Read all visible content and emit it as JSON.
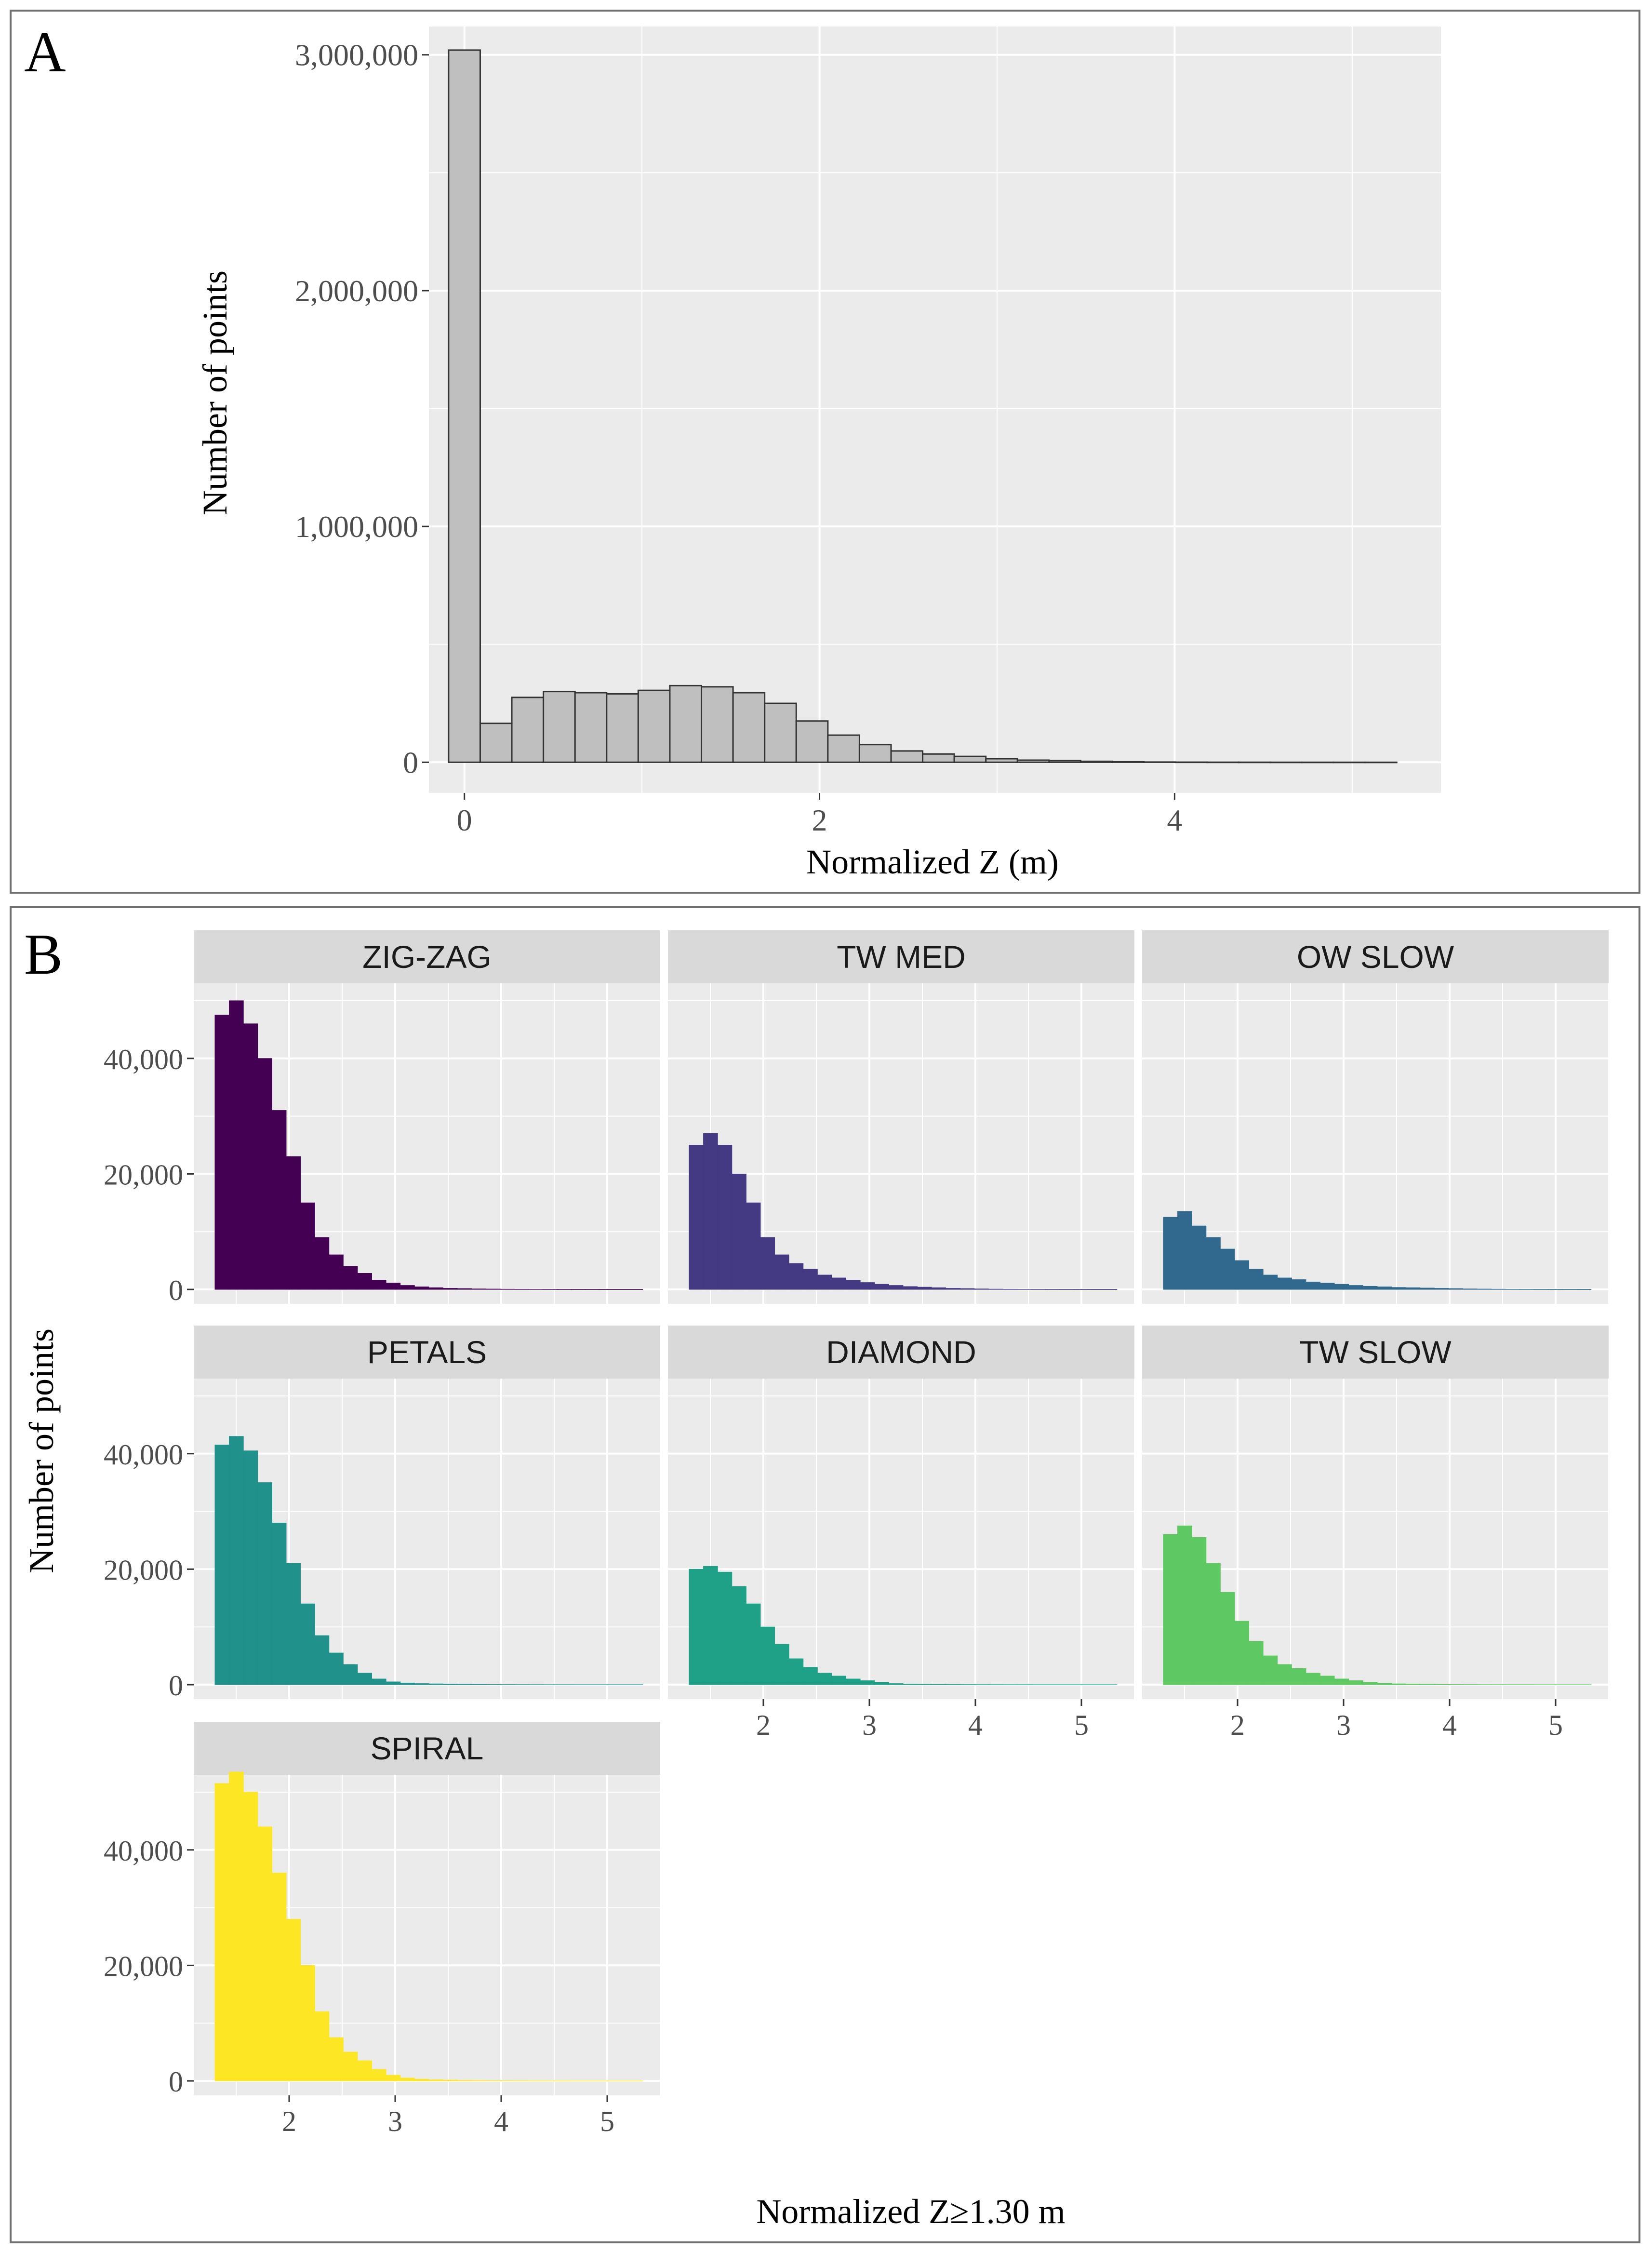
{
  "panel_a": {
    "letter": "A",
    "xlabel": "Normalized Z (m)",
    "ylabel": "Number of points"
  },
  "panel_b": {
    "letter": "B",
    "xlabel": "Normalized Z≥1.30 m",
    "ylabel": "Number of points"
  },
  "chart_data": [
    {
      "panel": "A",
      "type": "bar",
      "subtype": "histogram",
      "xlabel": "Normalized Z (m)",
      "ylabel": "Number of points",
      "xlim": [
        -0.2,
        5.5
      ],
      "ylim": [
        -130000,
        3120000
      ],
      "x_ticks": [
        0,
        2,
        4
      ],
      "x_tick_labels": [
        "0",
        "2",
        "4"
      ],
      "y_ticks": [
        0,
        1000000,
        2000000,
        3000000
      ],
      "y_tick_labels": [
        "0",
        "1,000,000",
        "2,000,000",
        "3,000,000"
      ],
      "bin_width": 0.178,
      "bin_start": -0.089,
      "values": [
        3020000,
        165000,
        275000,
        300000,
        295000,
        290000,
        305000,
        325000,
        320000,
        295000,
        250000,
        175000,
        115000,
        75000,
        48000,
        35000,
        25000,
        15000,
        9000,
        7000,
        4000,
        2000,
        1000,
        500,
        300,
        200,
        100,
        60,
        40,
        20
      ],
      "fill": "#bfbfbf",
      "outline": "#333333",
      "grid": true,
      "panel_background": "#ebebeb"
    },
    {
      "panel": "B",
      "type": "bar",
      "subtype": "faceted histogram",
      "xlabel": "Normalized Z≥1.30 m",
      "ylabel": "Number of points",
      "xlim": [
        1.1,
        5.5
      ],
      "ylim": [
        -2500,
        53000
      ],
      "x_ticks": [
        2,
        3,
        4,
        5
      ],
      "x_tick_labels": [
        "2",
        "3",
        "4",
        "5"
      ],
      "y_ticks": [
        0,
        20000,
        40000
      ],
      "y_tick_labels": [
        "0",
        "20,000",
        "40,000"
      ],
      "bin_width": 0.1345,
      "bin_start": 1.3,
      "grid": true,
      "panel_background": "#ebebeb",
      "strip_background": "#d9d9d9",
      "facets": [
        {
          "name": "ZIG-ZAG",
          "color": "#440154",
          "values": [
            47500,
            50000,
            46000,
            40000,
            31000,
            23000,
            15000,
            9000,
            6000,
            4000,
            2800,
            1600,
            1100,
            700,
            450,
            300,
            200,
            150,
            100,
            80,
            60,
            50,
            40,
            30,
            20,
            10,
            10,
            5,
            5,
            5
          ]
        },
        {
          "name": "TW MED",
          "color": "#443983",
          "values": [
            25000,
            27000,
            25000,
            20000,
            15000,
            9000,
            6000,
            4500,
            3500,
            2500,
            2000,
            1600,
            1200,
            900,
            700,
            500,
            400,
            300,
            200,
            150,
            100,
            70,
            50,
            40,
            30,
            20,
            15,
            10,
            5,
            5
          ]
        },
        {
          "name": "OW SLOW",
          "color": "#31688e",
          "values": [
            12500,
            13500,
            11000,
            9000,
            7000,
            5000,
            3500,
            2500,
            2000,
            1700,
            1300,
            1100,
            900,
            700,
            550,
            450,
            350,
            300,
            250,
            200,
            150,
            100,
            80,
            60,
            40,
            30,
            20,
            15,
            10,
            5
          ]
        },
        {
          "name": "PETALS",
          "color": "#21918c",
          "values": [
            41500,
            43000,
            40500,
            35000,
            28000,
            21000,
            14000,
            8500,
            5500,
            3500,
            2000,
            1000,
            500,
            300,
            200,
            150,
            100,
            80,
            60,
            40,
            30,
            20,
            15,
            10,
            10,
            5,
            5,
            5,
            5,
            5
          ]
        },
        {
          "name": "DIAMOND",
          "color": "#1fa187",
          "values": [
            20000,
            20500,
            19500,
            17000,
            14000,
            10000,
            7000,
            4500,
            3000,
            2000,
            1500,
            1000,
            700,
            400,
            200,
            100,
            80,
            60,
            40,
            30,
            20,
            15,
            10,
            10,
            5,
            5,
            5,
            5,
            5,
            5
          ]
        },
        {
          "name": "TW SLOW",
          "color": "#5ec962",
          "values": [
            26000,
            27500,
            25500,
            21000,
            16000,
            11000,
            7500,
            5000,
            3500,
            2800,
            2000,
            1500,
            1000,
            700,
            400,
            250,
            150,
            100,
            80,
            60,
            40,
            30,
            20,
            15,
            10,
            10,
            5,
            5,
            5,
            5
          ]
        },
        {
          "name": "SPIRAL",
          "color": "#fde725",
          "values": [
            51500,
            53500,
            50000,
            44000,
            36000,
            28000,
            20000,
            12000,
            7500,
            5000,
            3500,
            2000,
            1000,
            500,
            300,
            200,
            150,
            100,
            80,
            60,
            40,
            30,
            20,
            15,
            10,
            5,
            5,
            5,
            5,
            5
          ]
        }
      ]
    }
  ]
}
